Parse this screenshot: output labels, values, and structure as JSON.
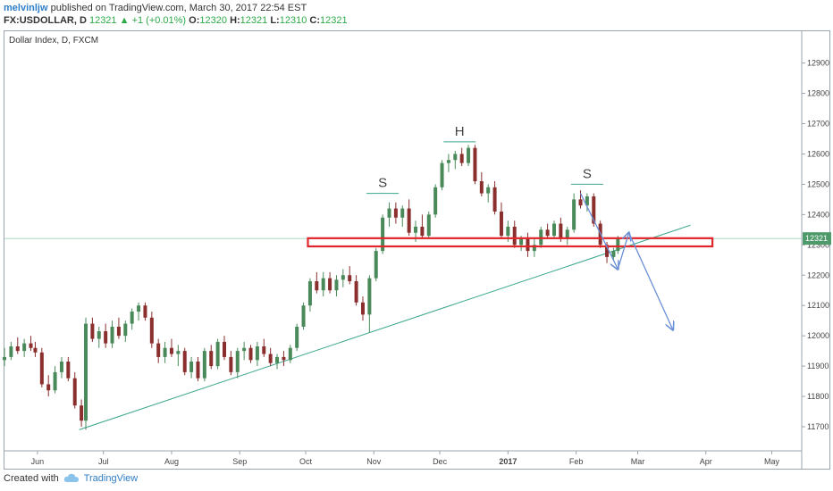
{
  "header": {
    "author": "melvinljw",
    "published_text": "published on TradingView.com, March 30, 2017 22:54 EST",
    "symbol": "FX:USDOLLAR, D",
    "last": "12321",
    "change": "+1 (+0.01%)",
    "change_arrow": "▲",
    "o_label": "O:",
    "o": "12320",
    "h_label": "H:",
    "h": "12321",
    "l_label": "L:",
    "l": "12310",
    "c_label": "C:",
    "c": "12321"
  },
  "footer": {
    "created_with": "Created with",
    "brand": "TradingView",
    "logo_icon": "tradingview-cloud-icon"
  },
  "chart_data": {
    "type": "candlestick",
    "title": "Dollar Index, D, FXCM",
    "ylim": [
      11620,
      12950
    ],
    "y_ticks": [
      11700,
      11800,
      11900,
      12000,
      12100,
      12200,
      12300,
      12400,
      12500,
      12600,
      12700,
      12800,
      12900
    ],
    "x_ticks": [
      "Jun",
      "Jul",
      "Aug",
      "Sep",
      "Oct",
      "Nov",
      "Dec",
      "2017",
      "Feb",
      "Mar",
      "Apr",
      "May"
    ],
    "x_tick_positions_day": [
      15,
      45,
      76,
      107,
      137,
      168,
      198,
      229,
      260,
      288,
      319,
      349
    ],
    "last_price_label": "12321",
    "colors": {
      "up": "#4a8a5a",
      "down": "#8a2e2e",
      "trendline": "#3aa68c",
      "neckline_box": "#e0262a",
      "arrow": "#6a8fd6",
      "label_line": "#3aa68c"
    },
    "ohlc": [
      {
        "day": 0,
        "o": 11920,
        "h": 11960,
        "l": 11900,
        "c": 11930
      },
      {
        "day": 3,
        "o": 11930,
        "h": 11980,
        "l": 11920,
        "c": 11965
      },
      {
        "day": 6,
        "o": 11965,
        "h": 11995,
        "l": 11940,
        "c": 11950
      },
      {
        "day": 9,
        "o": 11950,
        "h": 11990,
        "l": 11930,
        "c": 11975
      },
      {
        "day": 12,
        "o": 11975,
        "h": 12000,
        "l": 11950,
        "c": 11960
      },
      {
        "day": 14,
        "o": 11960,
        "h": 11980,
        "l": 11930,
        "c": 11945
      },
      {
        "day": 17,
        "o": 11945,
        "h": 11960,
        "l": 11830,
        "c": 11840
      },
      {
        "day": 20,
        "o": 11840,
        "h": 11870,
        "l": 11800,
        "c": 11820
      },
      {
        "day": 23,
        "o": 11820,
        "h": 11900,
        "l": 11810,
        "c": 11880
      },
      {
        "day": 26,
        "o": 11880,
        "h": 11930,
        "l": 11860,
        "c": 11915
      },
      {
        "day": 29,
        "o": 11915,
        "h": 11930,
        "l": 11850,
        "c": 11860
      },
      {
        "day": 32,
        "o": 11860,
        "h": 11880,
        "l": 11760,
        "c": 11770
      },
      {
        "day": 35,
        "o": 11770,
        "h": 11790,
        "l": 11700,
        "c": 11720
      },
      {
        "day": 37,
        "o": 11720,
        "h": 12060,
        "l": 11690,
        "c": 12040
      },
      {
        "day": 40,
        "o": 12040,
        "h": 12060,
        "l": 11980,
        "c": 11990
      },
      {
        "day": 43,
        "o": 11990,
        "h": 12030,
        "l": 11960,
        "c": 12015
      },
      {
        "day": 46,
        "o": 12015,
        "h": 12040,
        "l": 11960,
        "c": 11975
      },
      {
        "day": 49,
        "o": 11975,
        "h": 12050,
        "l": 11960,
        "c": 12030
      },
      {
        "day": 52,
        "o": 12030,
        "h": 12060,
        "l": 11990,
        "c": 12000
      },
      {
        "day": 55,
        "o": 12000,
        "h": 12050,
        "l": 11980,
        "c": 12040
      },
      {
        "day": 58,
        "o": 12040,
        "h": 12090,
        "l": 12020,
        "c": 12080
      },
      {
        "day": 61,
        "o": 12080,
        "h": 12110,
        "l": 12050,
        "c": 12100
      },
      {
        "day": 64,
        "o": 12100,
        "h": 12110,
        "l": 12050,
        "c": 12060
      },
      {
        "day": 67,
        "o": 12060,
        "h": 12080,
        "l": 11960,
        "c": 11975
      },
      {
        "day": 70,
        "o": 11975,
        "h": 11990,
        "l": 11910,
        "c": 11930
      },
      {
        "day": 73,
        "o": 11930,
        "h": 11980,
        "l": 11910,
        "c": 11960
      },
      {
        "day": 76,
        "o": 11960,
        "h": 11990,
        "l": 11930,
        "c": 11940
      },
      {
        "day": 79,
        "o": 11940,
        "h": 11970,
        "l": 11900,
        "c": 11950
      },
      {
        "day": 82,
        "o": 11950,
        "h": 11960,
        "l": 11870,
        "c": 11880
      },
      {
        "day": 85,
        "o": 11880,
        "h": 11930,
        "l": 11860,
        "c": 11915
      },
      {
        "day": 88,
        "o": 11915,
        "h": 11930,
        "l": 11850,
        "c": 11860
      },
      {
        "day": 91,
        "o": 11860,
        "h": 11960,
        "l": 11850,
        "c": 11950
      },
      {
        "day": 94,
        "o": 11950,
        "h": 11970,
        "l": 11890,
        "c": 11900
      },
      {
        "day": 97,
        "o": 11900,
        "h": 11990,
        "l": 11890,
        "c": 11980
      },
      {
        "day": 100,
        "o": 11980,
        "h": 12000,
        "l": 11920,
        "c": 11930
      },
      {
        "day": 103,
        "o": 11930,
        "h": 11950,
        "l": 11870,
        "c": 11880
      },
      {
        "day": 106,
        "o": 11880,
        "h": 11960,
        "l": 11860,
        "c": 11950
      },
      {
        "day": 109,
        "o": 11950,
        "h": 11980,
        "l": 11920,
        "c": 11960
      },
      {
        "day": 112,
        "o": 11960,
        "h": 11970,
        "l": 11910,
        "c": 11920
      },
      {
        "day": 115,
        "o": 11920,
        "h": 11980,
        "l": 11900,
        "c": 11965
      },
      {
        "day": 118,
        "o": 11965,
        "h": 11990,
        "l": 11930,
        "c": 11940
      },
      {
        "day": 121,
        "o": 11940,
        "h": 11960,
        "l": 11900,
        "c": 11910
      },
      {
        "day": 124,
        "o": 11910,
        "h": 11940,
        "l": 11890,
        "c": 11930
      },
      {
        "day": 127,
        "o": 11930,
        "h": 11950,
        "l": 11900,
        "c": 11920
      },
      {
        "day": 130,
        "o": 11920,
        "h": 11970,
        "l": 11910,
        "c": 11960
      },
      {
        "day": 133,
        "o": 11960,
        "h": 12040,
        "l": 11950,
        "c": 12030
      },
      {
        "day": 136,
        "o": 12030,
        "h": 12110,
        "l": 12020,
        "c": 12100
      },
      {
        "day": 139,
        "o": 12100,
        "h": 12190,
        "l": 12080,
        "c": 12180
      },
      {
        "day": 142,
        "o": 12180,
        "h": 12210,
        "l": 12140,
        "c": 12150
      },
      {
        "day": 145,
        "o": 12150,
        "h": 12210,
        "l": 12130,
        "c": 12190
      },
      {
        "day": 148,
        "o": 12190,
        "h": 12210,
        "l": 12140,
        "c": 12150
      },
      {
        "day": 151,
        "o": 12150,
        "h": 12200,
        "l": 12130,
        "c": 12185
      },
      {
        "day": 154,
        "o": 12185,
        "h": 12220,
        "l": 12160,
        "c": 12200
      },
      {
        "day": 157,
        "o": 12200,
        "h": 12230,
        "l": 12170,
        "c": 12180
      },
      {
        "day": 160,
        "o": 12180,
        "h": 12200,
        "l": 12100,
        "c": 12110
      },
      {
        "day": 163,
        "o": 12110,
        "h": 12130,
        "l": 12050,
        "c": 12070
      },
      {
        "day": 166,
        "o": 12070,
        "h": 12200,
        "l": 12010,
        "c": 12190
      },
      {
        "day": 169,
        "o": 12190,
        "h": 12290,
        "l": 12180,
        "c": 12280
      },
      {
        "day": 172,
        "o": 12280,
        "h": 12400,
        "l": 12270,
        "c": 12390
      },
      {
        "day": 175,
        "o": 12390,
        "h": 12440,
        "l": 12360,
        "c": 12420
      },
      {
        "day": 178,
        "o": 12420,
        "h": 12440,
        "l": 12370,
        "c": 12390
      },
      {
        "day": 181,
        "o": 12390,
        "h": 12430,
        "l": 12360,
        "c": 12420
      },
      {
        "day": 184,
        "o": 12420,
        "h": 12450,
        "l": 12330,
        "c": 12340
      },
      {
        "day": 187,
        "o": 12340,
        "h": 12380,
        "l": 12310,
        "c": 12360
      },
      {
        "day": 190,
        "o": 12360,
        "h": 12400,
        "l": 12320,
        "c": 12330
      },
      {
        "day": 193,
        "o": 12330,
        "h": 12410,
        "l": 12320,
        "c": 12400
      },
      {
        "day": 196,
        "o": 12400,
        "h": 12500,
        "l": 12390,
        "c": 12490
      },
      {
        "day": 199,
        "o": 12490,
        "h": 12580,
        "l": 12480,
        "c": 12570
      },
      {
        "day": 202,
        "o": 12570,
        "h": 12600,
        "l": 12540,
        "c": 12580
      },
      {
        "day": 205,
        "o": 12580,
        "h": 12610,
        "l": 12550,
        "c": 12600
      },
      {
        "day": 208,
        "o": 12600,
        "h": 12620,
        "l": 12560,
        "c": 12570
      },
      {
        "day": 211,
        "o": 12570,
        "h": 12630,
        "l": 12560,
        "c": 12620
      },
      {
        "day": 214,
        "o": 12620,
        "h": 12630,
        "l": 12500,
        "c": 12510
      },
      {
        "day": 217,
        "o": 12510,
        "h": 12540,
        "l": 12460,
        "c": 12470
      },
      {
        "day": 220,
        "o": 12470,
        "h": 12500,
        "l": 12440,
        "c": 12490
      },
      {
        "day": 223,
        "o": 12490,
        "h": 12510,
        "l": 12400,
        "c": 12410
      },
      {
        "day": 226,
        "o": 12410,
        "h": 12440,
        "l": 12320,
        "c": 12330
      },
      {
        "day": 229,
        "o": 12330,
        "h": 12380,
        "l": 12310,
        "c": 12360
      },
      {
        "day": 232,
        "o": 12360,
        "h": 12380,
        "l": 12290,
        "c": 12300
      },
      {
        "day": 235,
        "o": 12300,
        "h": 12330,
        "l": 12280,
        "c": 12320
      },
      {
        "day": 238,
        "o": 12320,
        "h": 12340,
        "l": 12260,
        "c": 12280
      },
      {
        "day": 241,
        "o": 12280,
        "h": 12320,
        "l": 12260,
        "c": 12300
      },
      {
        "day": 244,
        "o": 12300,
        "h": 12360,
        "l": 12290,
        "c": 12350
      },
      {
        "day": 247,
        "o": 12350,
        "h": 12370,
        "l": 12320,
        "c": 12330
      },
      {
        "day": 250,
        "o": 12330,
        "h": 12380,
        "l": 12320,
        "c": 12370
      },
      {
        "day": 253,
        "o": 12370,
        "h": 12390,
        "l": 12310,
        "c": 12320
      },
      {
        "day": 256,
        "o": 12320,
        "h": 12360,
        "l": 12300,
        "c": 12350
      },
      {
        "day": 259,
        "o": 12350,
        "h": 12470,
        "l": 12340,
        "c": 12450
      },
      {
        "day": 262,
        "o": 12450,
        "h": 12480,
        "l": 12420,
        "c": 12430
      },
      {
        "day": 265,
        "o": 12430,
        "h": 12470,
        "l": 12410,
        "c": 12460
      },
      {
        "day": 268,
        "o": 12460,
        "h": 12470,
        "l": 12360,
        "c": 12370
      },
      {
        "day": 271,
        "o": 12370,
        "h": 12380,
        "l": 12290,
        "c": 12300
      },
      {
        "day": 274,
        "o": 12300,
        "h": 12310,
        "l": 12240,
        "c": 12260
      },
      {
        "day": 277,
        "o": 12260,
        "h": 12290,
        "l": 12250,
        "c": 12280
      },
      {
        "day": 279,
        "o": 12280,
        "h": 12330,
        "l": 12270,
        "c": 12321
      }
    ],
    "annotations": [
      {
        "text": "S",
        "day": 172,
        "value": 12470,
        "type": "label"
      },
      {
        "text": "H",
        "day": 207,
        "value": 12640,
        "type": "label"
      },
      {
        "text": "S",
        "day": 265,
        "value": 12500,
        "type": "label"
      }
    ],
    "neckline_box": {
      "day_start": 138,
      "day_end": 322,
      "value_top": 12322,
      "value_bottom": 12295
    },
    "trendline": {
      "from": {
        "day": 34,
        "value": 11690
      },
      "to": {
        "day": 312,
        "value": 12365
      }
    },
    "arrows": [
      {
        "from": {
          "day": 262,
          "value": 12470
        },
        "to": {
          "day": 279,
          "value": 12220
        }
      },
      {
        "from": {
          "day": 279,
          "value": 12220
        },
        "to": {
          "day": 284,
          "value": 12340
        }
      },
      {
        "from": {
          "day": 284,
          "value": 12340
        },
        "to": {
          "day": 304,
          "value": 12020
        }
      }
    ]
  }
}
